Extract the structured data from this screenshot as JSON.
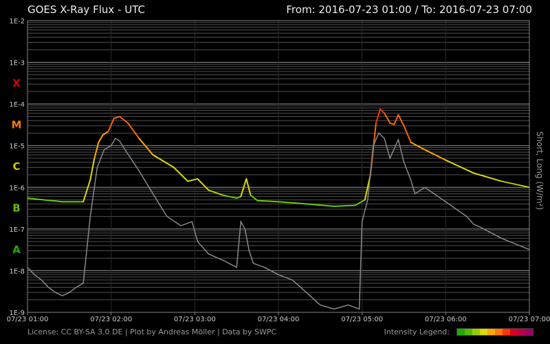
{
  "header": {
    "title": "GOES X-Ray Flux - UTC",
    "from_label": "From:",
    "from_value": "2016-07-23 01:00",
    "separator": "/",
    "to_label": "To:",
    "to_value": "2016-07-23 07:00"
  },
  "footer": {
    "license": "License: CC BY-SA 3.0 DE | Plot by Andreas Möller | Data by SWPC",
    "legend_label": "Intensity Legend:",
    "legend_colors": [
      "#22aa00",
      "#55bb00",
      "#99cc00",
      "#dddd00",
      "#ffaa00",
      "#ff7700",
      "#ff3300",
      "#dd0022",
      "#bb0044",
      "#990066"
    ]
  },
  "chart_data": {
    "type": "line",
    "title": "GOES X-Ray Flux - UTC",
    "ylabel": "Short, Long (W/m²)",
    "yscale": "log",
    "ylim": [
      1e-09,
      0.01
    ],
    "xlim": [
      "2016-07-23 01:00",
      "2016-07-23 07:00"
    ],
    "y_ticks": [
      "1E-9",
      "1E-8",
      "1E-7",
      "1E-6",
      "1E-5",
      "1E-4",
      "1E-3",
      "1E-2"
    ],
    "x_ticks": [
      "07/23 01:00",
      "07/23 02:00",
      "07/23 03:00",
      "07/23 04:00",
      "07/23 05:00",
      "07/23 06:00",
      "07/23 07:00"
    ],
    "classes": [
      {
        "label": "A",
        "color": "#22aa00",
        "y": 3.16e-08
      },
      {
        "label": "B",
        "color": "#66bb00",
        "y": 3.16e-07
      },
      {
        "label": "C",
        "color": "#cccc00",
        "y": 3.16e-06
      },
      {
        "label": "M",
        "color": "#ff7700",
        "y": 3.16e-05
      },
      {
        "label": "X",
        "color": "#dd0000",
        "y": 0.000316
      }
    ],
    "grid": true,
    "series": [
      {
        "name": "Long",
        "x": [
          "2016-07-23 01:00",
          "2016-07-23 01:25",
          "2016-07-23 01:40",
          "2016-07-23 01:45",
          "2016-07-23 01:48",
          "2016-07-23 01:51",
          "2016-07-23 01:54",
          "2016-07-23 01:58",
          "2016-07-23 02:02",
          "2016-07-23 02:06",
          "2016-07-23 02:12",
          "2016-07-23 02:20",
          "2016-07-23 02:30",
          "2016-07-23 02:45",
          "2016-07-23 02:55",
          "2016-07-23 03:02",
          "2016-07-23 03:10",
          "2016-07-23 03:20",
          "2016-07-23 03:30",
          "2016-07-23 03:33",
          "2016-07-23 03:37",
          "2016-07-23 03:40",
          "2016-07-23 03:45",
          "2016-07-23 04:00",
          "2016-07-23 04:20",
          "2016-07-23 04:40",
          "2016-07-23 04:55",
          "2016-07-23 05:02",
          "2016-07-23 05:06",
          "2016-07-23 05:10",
          "2016-07-23 05:13",
          "2016-07-23 05:16",
          "2016-07-23 05:20",
          "2016-07-23 05:23",
          "2016-07-23 05:26",
          "2016-07-23 05:30",
          "2016-07-23 05:35",
          "2016-07-23 05:45",
          "2016-07-23 06:00",
          "2016-07-23 06:20",
          "2016-07-23 06:40",
          "2016-07-23 07:00"
        ],
        "values": [
          5.5e-07,
          4.5e-07,
          4.5e-07,
          1.5e-06,
          5e-06,
          1.2e-05,
          1.8e-05,
          2.2e-05,
          4.5e-05,
          5e-05,
          3.5e-05,
          1.5e-05,
          6e-06,
          3e-06,
          1.4e-06,
          1.6e-06,
          8.5e-07,
          6.5e-07,
          5.5e-07,
          6e-07,
          1.6e-06,
          6.5e-07,
          4.8e-07,
          4.5e-07,
          4e-07,
          3.5e-07,
          3.7e-07,
          5e-07,
          2e-06,
          3.5e-05,
          7.5e-05,
          6e-05,
          3.5e-05,
          3.2e-05,
          5.5e-05,
          3e-05,
          1.2e-05,
          8e-06,
          4.5e-06,
          2.2e-06,
          1.4e-06,
          1e-06
        ]
      },
      {
        "name": "Short",
        "x": [
          "2016-07-23 01:00",
          "2016-07-23 01:05",
          "2016-07-23 01:10",
          "2016-07-23 01:15",
          "2016-07-23 01:20",
          "2016-07-23 01:25",
          "2016-07-23 01:30",
          "2016-07-23 01:35",
          "2016-07-23 01:40",
          "2016-07-23 01:45",
          "2016-07-23 01:50",
          "2016-07-23 01:55",
          "2016-07-23 02:00",
          "2016-07-23 02:03",
          "2016-07-23 02:06",
          "2016-07-23 02:10",
          "2016-07-23 02:20",
          "2016-07-23 02:30",
          "2016-07-23 02:40",
          "2016-07-23 02:50",
          "2016-07-23 02:58",
          "2016-07-23 03:02",
          "2016-07-23 03:10",
          "2016-07-23 03:20",
          "2016-07-23 03:30",
          "2016-07-23 03:33",
          "2016-07-23 03:36",
          "2016-07-23 03:39",
          "2016-07-23 03:42",
          "2016-07-23 03:50",
          "2016-07-23 04:00",
          "2016-07-23 04:10",
          "2016-07-23 04:20",
          "2016-07-23 04:30",
          "2016-07-23 04:40",
          "2016-07-23 04:50",
          "2016-07-23 04:58",
          "2016-07-23 05:00",
          "2016-07-23 05:04",
          "2016-07-23 05:08",
          "2016-07-23 05:12",
          "2016-07-23 05:16",
          "2016-07-23 05:20",
          "2016-07-23 05:26",
          "2016-07-23 05:30",
          "2016-07-23 05:35",
          "2016-07-23 05:38",
          "2016-07-23 05:45",
          "2016-07-23 06:00",
          "2016-07-23 06:15",
          "2016-07-23 06:20",
          "2016-07-23 06:25",
          "2016-07-23 06:40",
          "2016-07-23 07:00"
        ],
        "values": [
          1.2e-08,
          8e-09,
          6e-09,
          4e-09,
          3e-09,
          2.5e-09,
          3e-09,
          4e-09,
          5e-09,
          2e-07,
          3e-06,
          8e-06,
          1e-05,
          1.5e-05,
          1.3e-05,
          8e-06,
          2.5e-06,
          7e-07,
          2e-07,
          1.2e-07,
          1.5e-07,
          5e-08,
          2.5e-08,
          1.8e-08,
          1.2e-08,
          1.5e-07,
          1e-07,
          3e-08,
          1.5e-08,
          1.2e-08,
          8e-09,
          6e-09,
          3e-09,
          1.5e-09,
          1.2e-09,
          1.5e-09,
          1.2e-09,
          1.5e-07,
          5e-07,
          1e-05,
          2e-05,
          1.5e-05,
          5e-06,
          1.4e-05,
          4e-06,
          1.5e-06,
          7e-07,
          1e-06,
          4.5e-07,
          2e-07,
          1.3e-07,
          1.1e-07,
          6e-08,
          3.2e-08
        ]
      }
    ]
  }
}
